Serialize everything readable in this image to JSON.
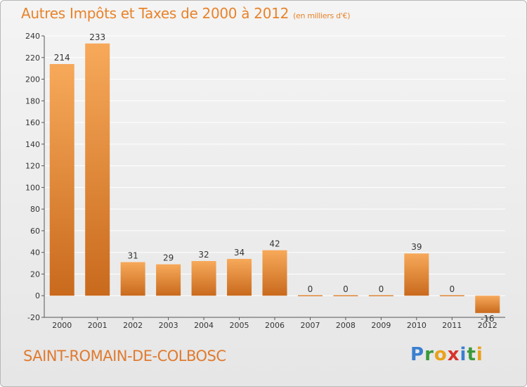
{
  "header": {
    "title": "Autres Impôts et Taxes de 2000 à 2012",
    "unit": "(en milliers d'€)"
  },
  "footer": {
    "commune": "SAINT-ROMAIN-DE-COLBOSC",
    "logo_letters": [
      {
        "ch": "P",
        "color": "#3a7fd0"
      },
      {
        "ch": "r",
        "color": "#3a9a3a"
      },
      {
        "ch": "o",
        "color": "#e8a21b"
      },
      {
        "ch": "x",
        "color": "#d8332b"
      },
      {
        "ch": "i",
        "color": "#3a7fd0"
      },
      {
        "ch": "t",
        "color": "#3a9a3a"
      },
      {
        "ch": "i",
        "color": "#e8a21b"
      }
    ]
  },
  "chart_data": {
    "type": "bar",
    "title": "Autres Impôts et Taxes de 2000 à 2012",
    "subtitle": "(en milliers d'€)",
    "categories": [
      "2000",
      "2001",
      "2002",
      "2003",
      "2004",
      "2005",
      "2006",
      "2007",
      "2008",
      "2009",
      "2010",
      "2011",
      "2012"
    ],
    "values": [
      214,
      233,
      31,
      29,
      32,
      34,
      42,
      0,
      0,
      0,
      39,
      0,
      -16
    ],
    "value_labels": [
      "214",
      "233",
      "31",
      "29",
      "32",
      "34",
      "42",
      "0",
      "0",
      "0",
      "39",
      "0",
      "-16"
    ],
    "ylim": [
      -20,
      240
    ],
    "yticks": [
      -20,
      0,
      20,
      40,
      60,
      80,
      100,
      120,
      140,
      160,
      180,
      200,
      220,
      240
    ],
    "grid": true,
    "bar_color_light": "#f7a95a",
    "bar_color_dark": "#c96a1d",
    "colors": {
      "accent": "#e8832a",
      "grid": "#ffffff",
      "axis": "#555555"
    }
  }
}
